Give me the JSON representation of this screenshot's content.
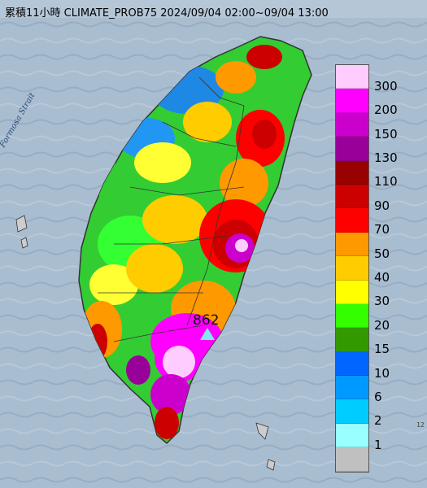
{
  "title": "累積11小時 CLIMATE_PROB75 2024/09/04 02:00~09/04 13:00",
  "strait_label": "Formosa Strait",
  "max_station_value": "862",
  "legend": {
    "labels": [
      "300",
      "200",
      "150",
      "130",
      "110",
      "90",
      "70",
      "50",
      "40",
      "30",
      "20",
      "15",
      "10",
      "6",
      "2",
      "1"
    ],
    "colors": [
      "#ffccff",
      "#ff00ff",
      "#cc00cc",
      "#990099",
      "#990000",
      "#cc0000",
      "#ff0000",
      "#ff9900",
      "#ffcc00",
      "#ffff00",
      "#33ff00",
      "#339900",
      "#0066ff",
      "#0099ff",
      "#00ccff",
      "#99ffff",
      "#c0c0c0"
    ]
  },
  "tick_label": "12"
}
